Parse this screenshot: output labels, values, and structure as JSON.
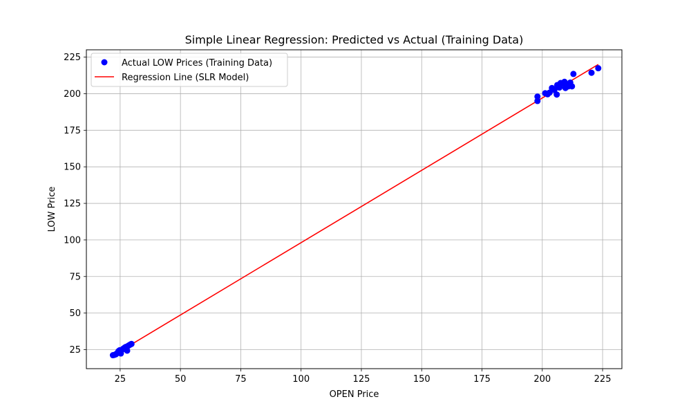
{
  "chart_data": {
    "type": "scatter",
    "title": "Simple Linear Regression: Predicted vs Actual (Training Data)",
    "xlabel": "OPEN Price",
    "ylabel": "LOW Price",
    "xlim": [
      11,
      233
    ],
    "ylim": [
      12,
      230
    ],
    "xticks": [
      25,
      50,
      75,
      100,
      125,
      150,
      175,
      200,
      225
    ],
    "yticks": [
      25,
      50,
      75,
      100,
      125,
      150,
      175,
      200,
      225
    ],
    "grid": true,
    "legend_position": "top-left",
    "series": [
      {
        "name": "Actual LOW Prices (Training Data)",
        "kind": "scatter",
        "color": "#0000ff",
        "points": [
          [
            22.0,
            21.2
          ],
          [
            22.6,
            21.4
          ],
          [
            23.2,
            21.8
          ],
          [
            23.8,
            22.6
          ],
          [
            24.3,
            23.9
          ],
          [
            24.8,
            24.6
          ],
          [
            25.3,
            22.4
          ],
          [
            25.9,
            25.1
          ],
          [
            26.4,
            25.8
          ],
          [
            26.9,
            26.4
          ],
          [
            27.4,
            26.9
          ],
          [
            27.9,
            24.3
          ],
          [
            28.3,
            27.6
          ],
          [
            28.8,
            28.1
          ],
          [
            29.3,
            28.6
          ],
          [
            29.7,
            28.9
          ],
          [
            198.0,
            198.0
          ],
          [
            198.0,
            195.0
          ],
          [
            201.2,
            200.3
          ],
          [
            202.2,
            199.6
          ],
          [
            203.0,
            200.7
          ],
          [
            204.0,
            203.9
          ],
          [
            205.0,
            202.5
          ],
          [
            206.0,
            199.4
          ],
          [
            206.2,
            205.9
          ],
          [
            207.1,
            204.2
          ],
          [
            207.6,
            207.3
          ],
          [
            208.4,
            206.8
          ],
          [
            209.2,
            208.1
          ],
          [
            209.6,
            203.9
          ],
          [
            210.1,
            206.4
          ],
          [
            210.8,
            205.0
          ],
          [
            211.6,
            207.6
          ],
          [
            212.3,
            205.0
          ],
          [
            212.9,
            213.5
          ],
          [
            220.4,
            214.3
          ],
          [
            223.2,
            217.4
          ]
        ]
      },
      {
        "name": "Regression Line (SLR Model)",
        "kind": "line",
        "color": "#ff0000",
        "points": [
          [
            22.0,
            21.0
          ],
          [
            223.2,
            220.0
          ]
        ]
      }
    ]
  }
}
